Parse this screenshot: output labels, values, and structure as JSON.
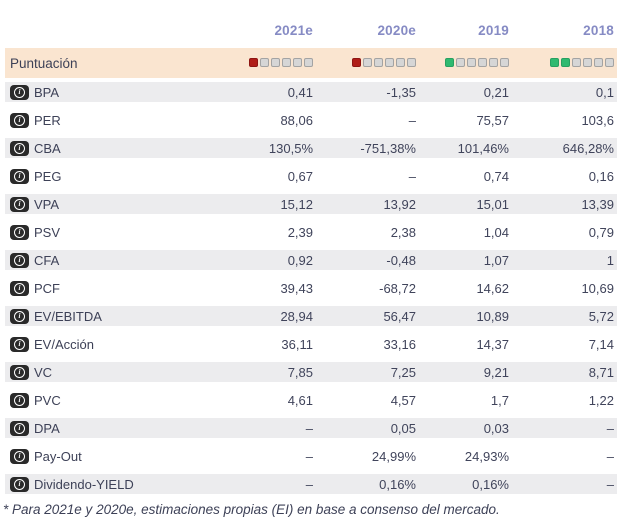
{
  "header": {
    "columns": [
      "2021e",
      "2020e",
      "2019",
      "2018"
    ]
  },
  "score_row": {
    "label": "Puntuación",
    "total_squares": 6,
    "scores": [
      {
        "column": "2021e",
        "filled": 1,
        "color": "red"
      },
      {
        "column": "2020e",
        "filled": 1,
        "color": "red"
      },
      {
        "column": "2019",
        "filled": 1,
        "color": "green"
      },
      {
        "column": "2018",
        "filled": 2,
        "color": "green"
      }
    ]
  },
  "rows": [
    {
      "label": "BPA",
      "values": [
        "0,41",
        "-1,35",
        "0,21",
        "0,1"
      ]
    },
    {
      "label": "PER",
      "values": [
        "88,06",
        "–",
        "75,57",
        "103,6"
      ]
    },
    {
      "label": "CBA",
      "values": [
        "130,5%",
        "-751,38%",
        "101,46%",
        "646,28%"
      ]
    },
    {
      "label": "PEG",
      "values": [
        "0,67",
        "–",
        "0,74",
        "0,16"
      ]
    },
    {
      "label": "VPA",
      "values": [
        "15,12",
        "13,92",
        "15,01",
        "13,39"
      ]
    },
    {
      "label": "PSV",
      "values": [
        "2,39",
        "2,38",
        "1,04",
        "0,79"
      ]
    },
    {
      "label": "CFA",
      "values": [
        "0,92",
        "-0,48",
        "1,07",
        "1"
      ]
    },
    {
      "label": "PCF",
      "values": [
        "39,43",
        "-68,72",
        "14,62",
        "10,69"
      ]
    },
    {
      "label": "EV/EBITDA",
      "values": [
        "28,94",
        "56,47",
        "10,89",
        "5,72"
      ]
    },
    {
      "label": "EV/Acción",
      "values": [
        "36,11",
        "33,16",
        "14,37",
        "7,14"
      ]
    },
    {
      "label": "VC",
      "values": [
        "7,85",
        "7,25",
        "9,21",
        "8,71"
      ]
    },
    {
      "label": "PVC",
      "values": [
        "4,61",
        "4,57",
        "1,7",
        "1,22"
      ]
    },
    {
      "label": "DPA",
      "values": [
        "–",
        "0,05",
        "0,03",
        "–"
      ]
    },
    {
      "label": "Pay-Out",
      "values": [
        "–",
        "24,99%",
        "24,93%",
        "–"
      ]
    },
    {
      "label": "Dividendo-YIELD",
      "values": [
        "–",
        "0,16%",
        "0,16%",
        "–"
      ]
    }
  ],
  "footer": {
    "note": "* Para 2021e y 2020e, estimaciones propias (EI) en base a consenso del mercado."
  },
  "icons": {
    "info": "info-icon"
  },
  "colors": {
    "score_row_background": "#fae5d0",
    "stripe_background": "#ececee",
    "score_red": "#b01d17",
    "score_green": "#2fba70",
    "score_empty": "#d6d6d6",
    "header_year_text": "#868bc4",
    "body_text": "#3d4157",
    "info_badge_background": "#2a2a2a"
  }
}
